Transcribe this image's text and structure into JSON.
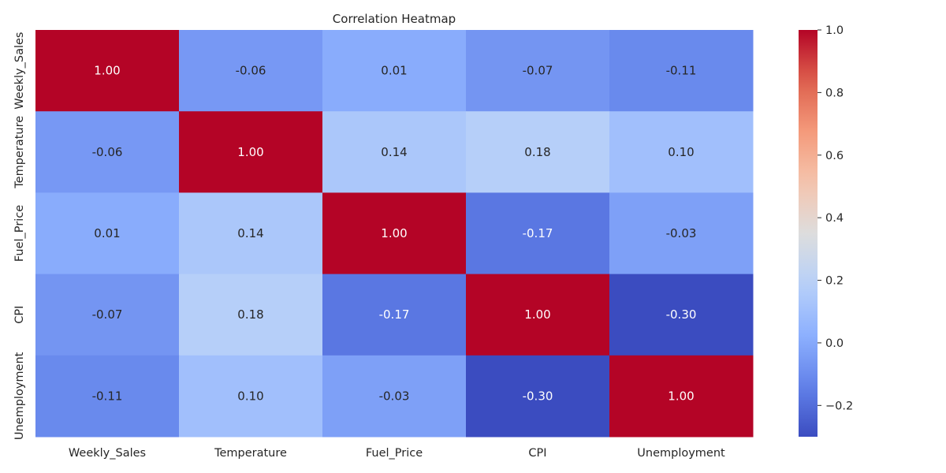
{
  "chart_data": {
    "type": "heatmap",
    "title": "Correlation Heatmap",
    "rows": [
      "Weekly_Sales",
      "Temperature",
      "Fuel_Price",
      "CPI",
      "Unemployment"
    ],
    "columns": [
      "Weekly_Sales",
      "Temperature",
      "Fuel_Price",
      "CPI",
      "Unemployment"
    ],
    "values": [
      [
        1.0,
        -0.06,
        0.01,
        -0.07,
        -0.11
      ],
      [
        -0.06,
        1.0,
        0.14,
        0.18,
        0.1
      ],
      [
        0.01,
        0.14,
        1.0,
        -0.17,
        -0.03
      ],
      [
        -0.07,
        0.18,
        -0.17,
        1.0,
        -0.3
      ],
      [
        -0.11,
        0.1,
        -0.03,
        -0.3,
        1.0
      ]
    ],
    "annotations": [
      [
        "1.00",
        "-0.06",
        "0.01",
        "-0.07",
        "-0.11"
      ],
      [
        "-0.06",
        "1.00",
        "0.14",
        "0.18",
        "0.10"
      ],
      [
        "0.01",
        "0.14",
        "1.00",
        "-0.17",
        "-0.03"
      ],
      [
        "-0.07",
        "0.18",
        "-0.17",
        "1.00",
        "-0.30"
      ],
      [
        "-0.11",
        "0.10",
        "-0.03",
        "-0.30",
        "1.00"
      ]
    ],
    "colormap": "coolwarm",
    "vlim": [
      -0.3,
      1.0
    ],
    "colorbar": {
      "ticks": [
        -0.2,
        0.0,
        0.2,
        0.4,
        0.6,
        0.8,
        1.0
      ],
      "tick_labels": [
        "−0.2",
        "0.0",
        "0.2",
        "0.4",
        "0.6",
        "0.8",
        "1.0"
      ]
    },
    "grid": false
  }
}
